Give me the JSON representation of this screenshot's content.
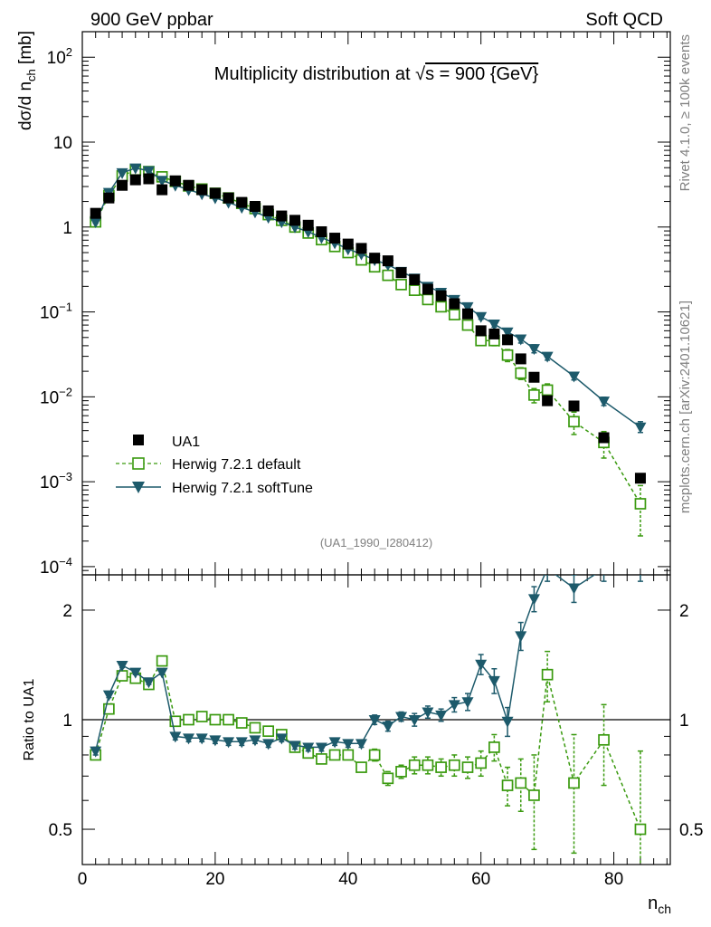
{
  "header": {
    "left": "900 GeV ppbar",
    "right": "Soft QCD"
  },
  "side_labels": {
    "rivet": "Rivet 4.1.0, ≥ 100k events",
    "mcplots": "mcplots.cern.ch [arXiv:2401.10621]"
  },
  "chart_data": [
    {
      "type": "scatter",
      "panel": "main",
      "title": "Multiplicity distribution at √s = 900 {GeV}",
      "title_prefix": "Multiplicity distribution at ",
      "title_sqrt": "√",
      "title_suffix": "s = 900 {GeV}",
      "ylabel": "dσ/d n_ch [mb]",
      "ylabel_main": "dσ/d n",
      "ylabel_sub": "ch",
      "ylabel_unit": " [mb]",
      "xlabel_main": "n",
      "xlabel_sub": "ch",
      "yscale": "log",
      "ylim": [
        8e-05,
        200
      ],
      "xlim": [
        0,
        88.5
      ],
      "analysis_id": "(UA1_1990_I280412)",
      "ytick_labels": {
        "1e-4": "10",
        "1e-3": "10",
        "1e-2": "10",
        "1e-1": "10",
        "1": "1",
        "10": "10",
        "100": "10"
      },
      "ytick_exps": {
        "1e-4": "−4",
        "1e-3": "−3",
        "1e-2": "−2",
        "1e-1": "−1",
        "100": "2"
      },
      "legend": {
        "position": "bottom-left",
        "entries": [
          "UA1",
          "Herwig 7.2.1 default",
          "Herwig 7.2.1 softTune"
        ]
      },
      "series": [
        {
          "name": "UA1",
          "style": "black-square",
          "x": [
            2,
            4,
            6,
            8,
            10,
            12,
            14,
            16,
            18,
            20,
            22,
            24,
            26,
            28,
            30,
            32,
            34,
            36,
            38,
            40,
            42,
            44,
            46,
            48,
            50,
            52,
            54,
            56,
            58,
            60,
            62,
            64,
            66,
            68,
            70,
            74,
            78.5,
            84
          ],
          "values": [
            1.45,
            2.2,
            3.1,
            3.6,
            3.7,
            2.75,
            3.5,
            3.1,
            2.75,
            2.5,
            2.2,
            1.95,
            1.75,
            1.55,
            1.35,
            1.2,
            1.05,
            0.88,
            0.74,
            0.63,
            0.56,
            0.43,
            0.4,
            0.29,
            0.24,
            0.185,
            0.155,
            0.125,
            0.095,
            0.06,
            0.055,
            0.047,
            0.028,
            0.017,
            0.009,
            0.0078,
            0.0033,
            0.0011
          ]
        },
        {
          "name": "Herwig 7.2.1 default",
          "style": "green-open-square-dashed",
          "color": "#3a9a0f",
          "x": [
            2,
            4,
            6,
            8,
            10,
            12,
            14,
            16,
            18,
            20,
            22,
            24,
            26,
            28,
            30,
            32,
            34,
            36,
            38,
            40,
            42,
            44,
            46,
            48,
            50,
            52,
            54,
            56,
            58,
            60,
            62,
            64,
            66,
            68,
            70,
            74,
            78.5,
            84
          ],
          "values": [
            1.15,
            2.35,
            4.0,
            4.7,
            4.5,
            3.9,
            3.45,
            3.05,
            2.8,
            2.5,
            2.2,
            1.9,
            1.65,
            1.4,
            1.2,
            1.0,
            0.85,
            0.71,
            0.59,
            0.5,
            0.41,
            0.34,
            0.27,
            0.21,
            0.18,
            0.14,
            0.115,
            0.093,
            0.07,
            0.046,
            0.046,
            0.031,
            0.019,
            0.0105,
            0.012,
            0.0051,
            0.0029,
            0.00055
          ],
          "err_low": [
            1.1,
            2.25,
            3.9,
            4.6,
            4.4,
            3.8,
            3.4,
            3.0,
            2.75,
            2.45,
            2.15,
            1.85,
            1.6,
            1.37,
            1.17,
            0.98,
            0.83,
            0.69,
            0.57,
            0.48,
            0.39,
            0.32,
            0.255,
            0.198,
            0.17,
            0.132,
            0.108,
            0.087,
            0.064,
            0.042,
            0.04,
            0.026,
            0.016,
            0.0085,
            0.0098,
            0.0036,
            0.0019,
            0.00023
          ],
          "err_high": [
            1.2,
            2.45,
            4.1,
            4.8,
            4.6,
            4.0,
            3.5,
            3.1,
            2.85,
            2.55,
            2.25,
            1.95,
            1.7,
            1.43,
            1.23,
            1.02,
            0.87,
            0.73,
            0.61,
            0.52,
            0.43,
            0.36,
            0.285,
            0.222,
            0.19,
            0.148,
            0.122,
            0.099,
            0.076,
            0.05,
            0.052,
            0.036,
            0.022,
            0.0125,
            0.0142,
            0.0066,
            0.0039,
            0.0009
          ]
        },
        {
          "name": "Herwig 7.2.1 softTune",
          "style": "teal-filled-triangle-down-solid",
          "color": "#1d5a6b",
          "x": [
            2,
            4,
            6,
            8,
            10,
            12,
            14,
            16,
            18,
            20,
            22,
            24,
            26,
            28,
            30,
            32,
            34,
            36,
            38,
            40,
            42,
            44,
            46,
            48,
            50,
            52,
            54,
            56,
            58,
            60,
            62,
            64,
            66,
            68,
            70,
            74,
            78.5,
            84
          ],
          "values": [
            1.15,
            2.55,
            4.35,
            4.95,
            4.6,
            3.55,
            3.1,
            2.75,
            2.45,
            2.2,
            1.95,
            1.7,
            1.5,
            1.3,
            1.15,
            1.0,
            0.88,
            0.75,
            0.65,
            0.55,
            0.48,
            0.41,
            0.36,
            0.3,
            0.25,
            0.2,
            0.17,
            0.14,
            0.115,
            0.088,
            0.072,
            0.058,
            0.048,
            0.037,
            0.03,
            0.0175,
            0.0089,
            0.0044
          ],
          "err_low": [
            1.1,
            2.45,
            4.25,
            4.85,
            4.5,
            3.45,
            3.0,
            2.7,
            2.4,
            2.15,
            1.9,
            1.66,
            1.47,
            1.27,
            1.12,
            0.97,
            0.86,
            0.73,
            0.63,
            0.53,
            0.46,
            0.39,
            0.34,
            0.285,
            0.237,
            0.19,
            0.16,
            0.132,
            0.107,
            0.082,
            0.066,
            0.053,
            0.043,
            0.033,
            0.027,
            0.0158,
            0.0079,
            0.0038
          ],
          "err_high": [
            1.2,
            2.65,
            4.45,
            5.05,
            4.7,
            3.65,
            3.2,
            2.8,
            2.5,
            2.25,
            2.0,
            1.74,
            1.53,
            1.33,
            1.18,
            1.03,
            0.9,
            0.77,
            0.67,
            0.57,
            0.5,
            0.43,
            0.38,
            0.315,
            0.263,
            0.21,
            0.18,
            0.148,
            0.123,
            0.094,
            0.078,
            0.063,
            0.053,
            0.041,
            0.033,
            0.0192,
            0.0099,
            0.0051
          ]
        }
      ]
    },
    {
      "type": "line",
      "panel": "ratio",
      "ylabel": "Ratio to UA1",
      "xlabel": "n_ch",
      "yscale": "log",
      "ylim": [
        0.4,
        2.5
      ],
      "xlim": [
        0,
        88.5
      ],
      "reference_line": 1,
      "ytick_labels": {
        "0.5": "0.5",
        "1": "1",
        "2": "2"
      },
      "xtick_labels": {
        "0": "0",
        "20": "20",
        "40": "40",
        "60": "60",
        "80": "80"
      },
      "series": [
        {
          "name": "Herwig 7.2.1 default",
          "color": "#3a9a0f",
          "x": [
            2,
            4,
            6,
            8,
            10,
            12,
            14,
            16,
            18,
            20,
            22,
            24,
            26,
            28,
            30,
            32,
            34,
            36,
            38,
            40,
            42,
            44,
            46,
            48,
            50,
            52,
            54,
            56,
            58,
            60,
            62,
            64,
            66,
            68,
            70,
            74,
            78.5,
            84
          ],
          "values": [
            0.8,
            1.07,
            1.32,
            1.3,
            1.25,
            1.45,
            0.99,
            1.0,
            1.02,
            1.0,
            1.0,
            0.98,
            0.95,
            0.93,
            0.91,
            0.84,
            0.81,
            0.78,
            0.8,
            0.8,
            0.74,
            0.8,
            0.69,
            0.72,
            0.75,
            0.75,
            0.74,
            0.75,
            0.74,
            0.76,
            0.84,
            0.66,
            0.67,
            0.62,
            1.33,
            0.67,
            0.88,
            0.5
          ],
          "err_low": [
            0.78,
            1.05,
            1.3,
            1.28,
            1.23,
            1.43,
            0.97,
            0.98,
            1.0,
            0.98,
            0.98,
            0.96,
            0.93,
            0.91,
            0.89,
            0.82,
            0.79,
            0.76,
            0.78,
            0.78,
            0.72,
            0.77,
            0.66,
            0.69,
            0.71,
            0.71,
            0.7,
            0.7,
            0.69,
            0.7,
            0.77,
            0.58,
            0.56,
            0.44,
            1.12,
            0.43,
            0.66,
            0.36
          ],
          "err_high": [
            0.82,
            1.09,
            1.34,
            1.32,
            1.27,
            1.47,
            1.01,
            1.02,
            1.04,
            1.02,
            1.02,
            1.0,
            0.97,
            0.95,
            0.93,
            0.86,
            0.83,
            0.8,
            0.82,
            0.82,
            0.76,
            0.83,
            0.72,
            0.75,
            0.79,
            0.79,
            0.78,
            0.8,
            0.79,
            0.82,
            0.91,
            0.74,
            0.78,
            0.8,
            1.54,
            0.91,
            1.1,
            0.82
          ]
        },
        {
          "name": "Herwig 7.2.1 softTune",
          "color": "#1d5a6b",
          "x": [
            2,
            4,
            6,
            8,
            10,
            12,
            14,
            16,
            18,
            20,
            22,
            24,
            26,
            28,
            30,
            32,
            34,
            36,
            38,
            40,
            42,
            44,
            46,
            48,
            50,
            52,
            54,
            56,
            58,
            60,
            62,
            64,
            66,
            68,
            70,
            74,
            78.5,
            84
          ],
          "values": [
            0.82,
            1.17,
            1.41,
            1.35,
            1.27,
            1.35,
            0.9,
            0.89,
            0.89,
            0.88,
            0.87,
            0.87,
            0.88,
            0.86,
            0.89,
            0.85,
            0.84,
            0.84,
            0.87,
            0.86,
            0.86,
            1.0,
            0.96,
            1.02,
            1.0,
            1.05,
            1.03,
            1.1,
            1.12,
            1.42,
            1.28,
            0.99,
            1.7,
            2.15,
            2.6,
            2.3,
            2.6,
            2.6
          ],
          "err_low": [
            0.8,
            1.15,
            1.39,
            1.33,
            1.25,
            1.33,
            0.88,
            0.87,
            0.87,
            0.86,
            0.85,
            0.85,
            0.86,
            0.84,
            0.87,
            0.83,
            0.82,
            0.82,
            0.85,
            0.84,
            0.84,
            0.97,
            0.93,
            0.99,
            0.96,
            1.01,
            0.99,
            1.05,
            1.06,
            1.33,
            1.18,
            0.9,
            1.55,
            1.98,
            2.4,
            2.1,
            2.4,
            2.4
          ],
          "err_high": [
            0.84,
            1.19,
            1.43,
            1.37,
            1.29,
            1.37,
            0.92,
            0.91,
            0.91,
            0.9,
            0.89,
            0.89,
            0.9,
            0.88,
            0.91,
            0.87,
            0.86,
            0.86,
            0.89,
            0.88,
            0.88,
            1.03,
            0.99,
            1.05,
            1.04,
            1.09,
            1.07,
            1.15,
            1.18,
            1.51,
            1.38,
            1.08,
            1.85,
            2.32,
            2.8,
            2.5,
            2.8,
            2.8
          ]
        }
      ]
    }
  ]
}
